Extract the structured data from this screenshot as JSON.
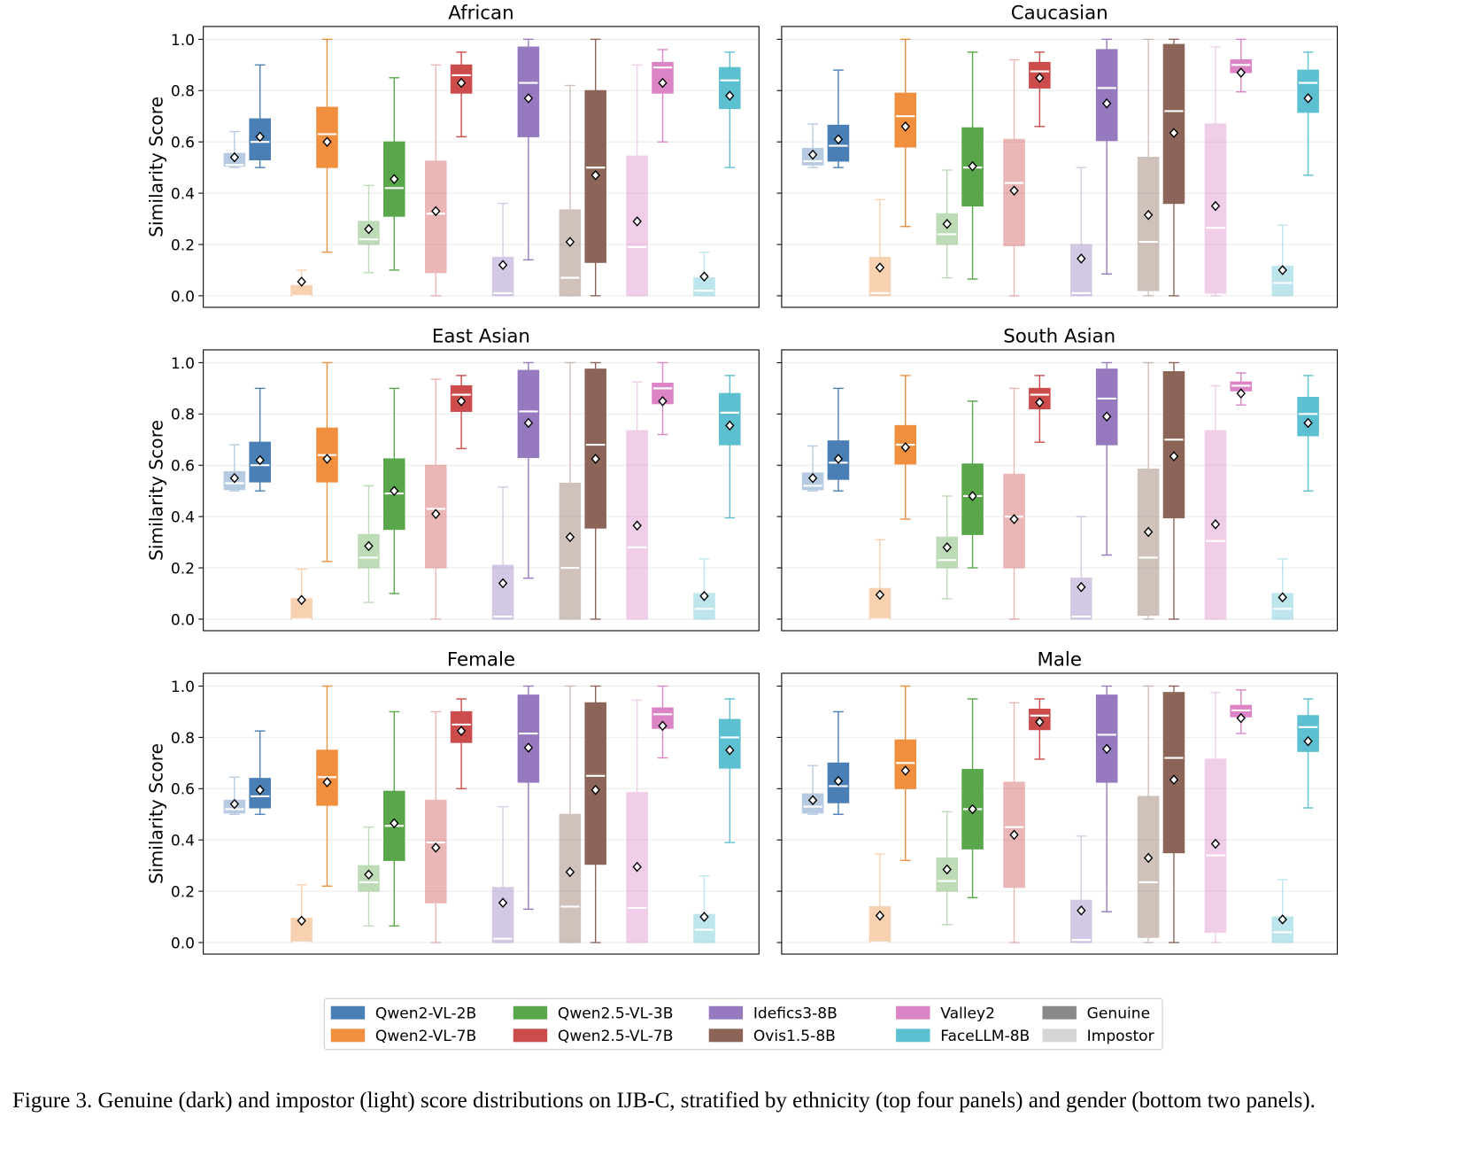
{
  "chart_data": [
    {
      "type": "box",
      "title": "African",
      "ylabel": "Similarity Score",
      "ylim": [
        -0.045,
        1.05
      ],
      "yticks": [
        {
          "value": 0,
          "label": "0.0"
        },
        {
          "value": 0.2,
          "label": "0.2"
        },
        {
          "value": 0.4,
          "label": "0.4"
        },
        {
          "value": 0.6,
          "label": "0.6"
        },
        {
          "value": 0.8,
          "label": "0.8"
        },
        {
          "value": 1,
          "label": "1.0"
        }
      ],
      "grid": true,
      "series": [
        {
          "impostor": [
            0.5,
            0.505,
            0.51,
            0.555,
            0.64,
            0.54
          ],
          "genuine": [
            0.5,
            0.53,
            0.6,
            0.69,
            0.9,
            0.62
          ]
        },
        {
          "impostor": [
            0,
            0,
            0,
            0.04,
            0.1,
            0.055
          ],
          "genuine": [
            0.17,
            0.5,
            0.63,
            0.735,
            1,
            0.6
          ]
        },
        {
          "impostor": [
            0.09,
            0.2,
            0.22,
            0.29,
            0.43,
            0.26
          ],
          "genuine": [
            0.1,
            0.31,
            0.42,
            0.6,
            0.85,
            0.455
          ]
        },
        {
          "impostor": [
            0,
            0.09,
            0.32,
            0.525,
            0.9,
            0.33
          ],
          "genuine": [
            0.62,
            0.79,
            0.86,
            0.9,
            0.95,
            0.83
          ]
        },
        {
          "impostor": [
            0,
            0,
            0.01,
            0.15,
            0.36,
            0.12
          ],
          "genuine": [
            0.14,
            0.62,
            0.83,
            0.97,
            1,
            0.77
          ]
        },
        {
          "impostor": [
            0,
            0,
            0.07,
            0.335,
            0.82,
            0.21
          ],
          "genuine": [
            0,
            0.13,
            0.5,
            0.8,
            1,
            0.47
          ]
        },
        {
          "impostor": [
            0,
            0,
            0.19,
            0.545,
            0.9,
            0.29
          ],
          "genuine": [
            0.6,
            0.79,
            0.89,
            0.91,
            0.96,
            0.83
          ]
        },
        {
          "impostor": [
            0,
            0,
            0.02,
            0.07,
            0.17,
            0.075
          ],
          "genuine": [
            0.5,
            0.73,
            0.84,
            0.89,
            0.95,
            0.78
          ]
        }
      ]
    },
    {
      "type": "box",
      "title": "Caucasian",
      "ylim": [
        -0.045,
        1.05
      ],
      "yticks": [
        0,
        0.2,
        0.4,
        0.6,
        0.8,
        1
      ],
      "grid": true,
      "series": [
        {
          "impostor": [
            0.5,
            0.51,
            0.525,
            0.575,
            0.67,
            0.55
          ],
          "genuine": [
            0.5,
            0.525,
            0.585,
            0.665,
            0.88,
            0.61
          ]
        },
        {
          "impostor": [
            0,
            0,
            0.01,
            0.15,
            0.375,
            0.11
          ],
          "genuine": [
            0.27,
            0.58,
            0.7,
            0.79,
            1,
            0.66
          ]
        },
        {
          "impostor": [
            0.07,
            0.2,
            0.24,
            0.32,
            0.49,
            0.28
          ],
          "genuine": [
            0.065,
            0.35,
            0.5,
            0.655,
            0.95,
            0.505
          ]
        },
        {
          "impostor": [
            0,
            0.195,
            0.44,
            0.61,
            0.92,
            0.41
          ],
          "genuine": [
            0.66,
            0.81,
            0.875,
            0.91,
            0.95,
            0.85
          ]
        },
        {
          "impostor": [
            0,
            0,
            0.01,
            0.2,
            0.5,
            0.145
          ],
          "genuine": [
            0.085,
            0.605,
            0.81,
            0.96,
            1,
            0.75
          ]
        },
        {
          "impostor": [
            0,
            0.02,
            0.21,
            0.54,
            1,
            0.315
          ],
          "genuine": [
            0,
            0.36,
            0.72,
            0.98,
            1,
            0.635
          ]
        },
        {
          "impostor": [
            0,
            0.01,
            0.265,
            0.67,
            0.97,
            0.35
          ],
          "genuine": [
            0.795,
            0.87,
            0.9,
            0.92,
            1,
            0.87
          ]
        },
        {
          "impostor": [
            0,
            0,
            0.05,
            0.115,
            0.275,
            0.1
          ],
          "genuine": [
            0.47,
            0.715,
            0.83,
            0.88,
            0.95,
            0.77
          ]
        }
      ]
    },
    {
      "type": "box",
      "title": "East Asian",
      "ylabel": "Similarity Score",
      "ylim": [
        -0.045,
        1.05
      ],
      "yticks": [
        {
          "value": 0,
          "label": "0.0"
        },
        {
          "value": 0.2,
          "label": "0.2"
        },
        {
          "value": 0.4,
          "label": "0.4"
        },
        {
          "value": 0.6,
          "label": "0.6"
        },
        {
          "value": 0.8,
          "label": "0.8"
        },
        {
          "value": 1,
          "label": "1.0"
        }
      ],
      "grid": true,
      "series": [
        {
          "impostor": [
            0.5,
            0.505,
            0.53,
            0.575,
            0.68,
            0.55
          ],
          "genuine": [
            0.5,
            0.535,
            0.6,
            0.69,
            0.9,
            0.62
          ]
        },
        {
          "impostor": [
            0,
            0,
            0,
            0.08,
            0.195,
            0.075
          ],
          "genuine": [
            0.225,
            0.535,
            0.64,
            0.745,
            1,
            0.625
          ]
        },
        {
          "impostor": [
            0.065,
            0.2,
            0.24,
            0.33,
            0.52,
            0.285
          ],
          "genuine": [
            0.1,
            0.35,
            0.49,
            0.625,
            0.9,
            0.5
          ]
        },
        {
          "impostor": [
            0,
            0.2,
            0.43,
            0.6,
            0.935,
            0.41
          ],
          "genuine": [
            0.665,
            0.81,
            0.875,
            0.91,
            0.95,
            0.85
          ]
        },
        {
          "impostor": [
            0,
            0,
            0.01,
            0.21,
            0.515,
            0.14
          ],
          "genuine": [
            0.16,
            0.63,
            0.81,
            0.97,
            1,
            0.765
          ]
        },
        {
          "impostor": [
            0,
            0,
            0.2,
            0.53,
            1,
            0.32
          ],
          "genuine": [
            0,
            0.355,
            0.68,
            0.975,
            1,
            0.625
          ]
        },
        {
          "impostor": [
            0,
            0,
            0.28,
            0.735,
            0.925,
            0.365
          ],
          "genuine": [
            0.72,
            0.84,
            0.9,
            0.92,
            1,
            0.85
          ]
        },
        {
          "impostor": [
            0,
            0,
            0.04,
            0.1,
            0.235,
            0.09
          ],
          "genuine": [
            0.395,
            0.68,
            0.805,
            0.88,
            0.95,
            0.755
          ]
        }
      ]
    },
    {
      "type": "box",
      "title": "South Asian",
      "ylim": [
        -0.045,
        1.05
      ],
      "yticks": [
        0,
        0.2,
        0.4,
        0.6,
        0.8,
        1
      ],
      "grid": true,
      "series": [
        {
          "impostor": [
            0.5,
            0.505,
            0.52,
            0.57,
            0.675,
            0.55
          ],
          "genuine": [
            0.5,
            0.545,
            0.61,
            0.695,
            0.9,
            0.625
          ]
        },
        {
          "impostor": [
            0,
            0,
            0,
            0.12,
            0.31,
            0.095
          ],
          "genuine": [
            0.39,
            0.605,
            0.68,
            0.755,
            0.95,
            0.67
          ]
        },
        {
          "impostor": [
            0.08,
            0.2,
            0.23,
            0.32,
            0.48,
            0.28
          ],
          "genuine": [
            0.2,
            0.33,
            0.48,
            0.605,
            0.85,
            0.48
          ]
        },
        {
          "impostor": [
            0,
            0.2,
            0.4,
            0.565,
            0.9,
            0.39
          ],
          "genuine": [
            0.69,
            0.82,
            0.875,
            0.9,
            0.95,
            0.845
          ]
        },
        {
          "impostor": [
            0,
            0,
            0.01,
            0.16,
            0.4,
            0.125
          ],
          "genuine": [
            0.25,
            0.68,
            0.86,
            0.975,
            1,
            0.79
          ]
        },
        {
          "impostor": [
            0,
            0.015,
            0.24,
            0.585,
            1,
            0.34
          ],
          "genuine": [
            0,
            0.395,
            0.7,
            0.965,
            1,
            0.635
          ]
        },
        {
          "impostor": [
            0,
            0,
            0.305,
            0.735,
            0.91,
            0.37
          ],
          "genuine": [
            0.835,
            0.89,
            0.91,
            0.925,
            0.96,
            0.88
          ]
        },
        {
          "impostor": [
            0,
            0,
            0.04,
            0.1,
            0.235,
            0.085
          ],
          "genuine": [
            0.5,
            0.715,
            0.8,
            0.865,
            0.95,
            0.765
          ]
        }
      ]
    },
    {
      "type": "box",
      "title": "Female",
      "ylabel": "Similarity Score",
      "ylim": [
        -0.045,
        1.05
      ],
      "yticks": [
        {
          "value": 0,
          "label": "0.0"
        },
        {
          "value": 0.2,
          "label": "0.2"
        },
        {
          "value": 0.4,
          "label": "0.4"
        },
        {
          "value": 0.6,
          "label": "0.6"
        },
        {
          "value": 0.8,
          "label": "0.8"
        },
        {
          "value": 1,
          "label": "1.0"
        }
      ],
      "grid": true,
      "series": [
        {
          "impostor": [
            0.5,
            0.505,
            0.52,
            0.555,
            0.645,
            0.54
          ],
          "genuine": [
            0.5,
            0.525,
            0.57,
            0.64,
            0.825,
            0.595
          ]
        },
        {
          "impostor": [
            0,
            0,
            0,
            0.095,
            0.225,
            0.085
          ],
          "genuine": [
            0.22,
            0.535,
            0.645,
            0.75,
            1,
            0.625
          ]
        },
        {
          "impostor": [
            0.065,
            0.2,
            0.235,
            0.3,
            0.45,
            0.265
          ],
          "genuine": [
            0.065,
            0.32,
            0.455,
            0.59,
            0.9,
            0.465
          ]
        },
        {
          "impostor": [
            0,
            0.155,
            0.39,
            0.555,
            0.9,
            0.37
          ],
          "genuine": [
            0.6,
            0.78,
            0.85,
            0.9,
            0.95,
            0.825
          ]
        },
        {
          "impostor": [
            0,
            0,
            0.015,
            0.215,
            0.53,
            0.155
          ],
          "genuine": [
            0.13,
            0.625,
            0.815,
            0.965,
            1,
            0.76
          ]
        },
        {
          "impostor": [
            0,
            0,
            0.14,
            0.5,
            1,
            0.275
          ],
          "genuine": [
            0,
            0.305,
            0.65,
            0.935,
            1,
            0.595
          ]
        },
        {
          "impostor": [
            0,
            0,
            0.135,
            0.585,
            0.945,
            0.295
          ],
          "genuine": [
            0.72,
            0.835,
            0.89,
            0.915,
            1,
            0.845
          ]
        },
        {
          "impostor": [
            0,
            0,
            0.05,
            0.11,
            0.26,
            0.1
          ],
          "genuine": [
            0.39,
            0.68,
            0.8,
            0.87,
            0.95,
            0.75
          ]
        }
      ]
    },
    {
      "type": "box",
      "title": "Male",
      "ylim": [
        -0.045,
        1.05
      ],
      "yticks": [
        0,
        0.2,
        0.4,
        0.6,
        0.8,
        1
      ],
      "grid": true,
      "series": [
        {
          "impostor": [
            0.5,
            0.505,
            0.53,
            0.58,
            0.69,
            0.555
          ],
          "genuine": [
            0.5,
            0.545,
            0.61,
            0.7,
            0.9,
            0.63
          ]
        },
        {
          "impostor": [
            0,
            0,
            0,
            0.14,
            0.345,
            0.105
          ],
          "genuine": [
            0.32,
            0.6,
            0.7,
            0.79,
            1,
            0.67
          ]
        },
        {
          "impostor": [
            0.07,
            0.2,
            0.24,
            0.33,
            0.51,
            0.285
          ],
          "genuine": [
            0.175,
            0.365,
            0.52,
            0.675,
            0.95,
            0.52
          ]
        },
        {
          "impostor": [
            0,
            0.215,
            0.45,
            0.625,
            0.935,
            0.42
          ],
          "genuine": [
            0.715,
            0.83,
            0.885,
            0.91,
            0.95,
            0.86
          ]
        },
        {
          "impostor": [
            0,
            0,
            0.01,
            0.165,
            0.415,
            0.125
          ],
          "genuine": [
            0.12,
            0.625,
            0.81,
            0.965,
            1,
            0.755
          ]
        },
        {
          "impostor": [
            0,
            0.02,
            0.235,
            0.57,
            1,
            0.33
          ],
          "genuine": [
            0,
            0.35,
            0.72,
            0.975,
            1,
            0.635
          ]
        },
        {
          "impostor": [
            0,
            0.04,
            0.34,
            0.715,
            0.975,
            0.385
          ],
          "genuine": [
            0.815,
            0.88,
            0.905,
            0.925,
            0.985,
            0.875
          ]
        },
        {
          "impostor": [
            0,
            0,
            0.04,
            0.1,
            0.245,
            0.09
          ],
          "genuine": [
            0.525,
            0.745,
            0.84,
            0.885,
            0.95,
            0.785
          ]
        }
      ]
    }
  ],
  "legend": {
    "entries": [
      {
        "name": "Qwen2-VL-2B",
        "color": "#4a7fb6"
      },
      {
        "name": "Qwen2-VL-7B",
        "color": "#f08f3e"
      },
      {
        "name": "Qwen2.5-VL-3B",
        "color": "#5aa64b"
      },
      {
        "name": "Qwen2.5-VL-7B",
        "color": "#cc4b4b"
      },
      {
        "name": "Idefics3-8B",
        "color": "#9679bf"
      },
      {
        "name": "Ovis1.5-8B",
        "color": "#8c6558"
      },
      {
        "name": "Valley2",
        "color": "#dc85c6"
      },
      {
        "name": "FaceLLM-8B",
        "color": "#5cc0d0"
      }
    ],
    "genuine": {
      "name": "Genuine",
      "color": "#8a8a8a"
    },
    "impostor": {
      "name": "Impostor",
      "color": "#d6d6d6"
    }
  },
  "caption": "Figure 3. Genuine (dark) and impostor (light) score distributions on IJB-C, stratified by ethnicity (top four panels) and gender (bottom two panels)."
}
